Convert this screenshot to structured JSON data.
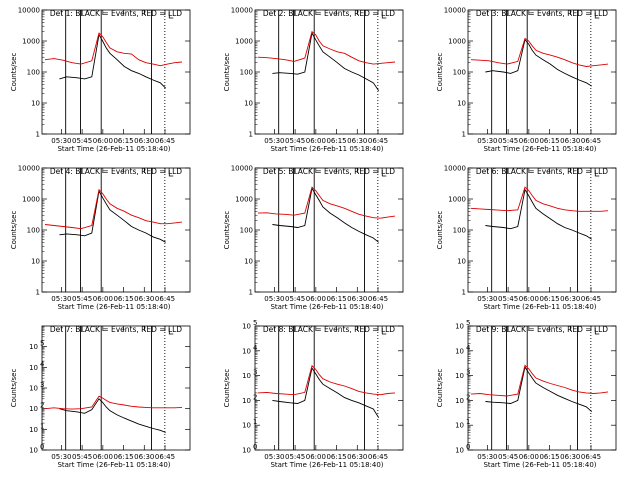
{
  "figure": {
    "colors": {
      "black_series": "#000000",
      "red_series": "#dd0000",
      "axes": "#000000",
      "background": "#ffffff"
    },
    "xticks": [
      "05:30",
      "05:45",
      "06:00",
      "06:15",
      "06:30",
      "06:45"
    ],
    "xlabel": "Start Time (26-Feb-11 05:18:40)",
    "ylabel": "Counts/sec"
  },
  "chart_data": [
    {
      "type": "line",
      "title": "Det 1: BLACK = Events, RED = LLD",
      "ylim": [
        1,
        10000
      ],
      "ytick_style": "plain",
      "yticks": [
        "1",
        "10",
        "100",
        "1000",
        "10000"
      ],
      "xlabel": "Start Time (26-Feb-11 05:18:40)",
      "ylabel": "Counts/sec",
      "xticks": [
        "05:30",
        "05:45",
        "06:00",
        "06:15",
        "06:30",
        "06:45"
      ],
      "series": [
        {
          "color": "black",
          "x_minutes": [
            5,
            8,
            12,
            18,
            22,
            26,
            30,
            32,
            34,
            36,
            40,
            44,
            48,
            52,
            56,
            60,
            64,
            67
          ],
          "values": [
            null,
            60,
            70,
            65,
            60,
            70,
            1600,
            1000,
            600,
            400,
            250,
            150,
            110,
            90,
            70,
            55,
            45,
            30
          ]
        },
        {
          "color": "red",
          "x_minutes": [
            0,
            5,
            10,
            15,
            20,
            26,
            30,
            32,
            34,
            36,
            40,
            44,
            48,
            52,
            56,
            60,
            64,
            68,
            72,
            76
          ],
          "values": [
            250,
            270,
            240,
            200,
            180,
            230,
            1800,
            1400,
            900,
            600,
            450,
            400,
            380,
            250,
            200,
            180,
            160,
            180,
            200,
            210
          ]
        }
      ]
    },
    {
      "type": "line",
      "title": "Det 2: BLACK = Events, RED = LLD",
      "ylim": [
        1,
        10000
      ],
      "ytick_style": "plain",
      "yticks": [
        "1",
        "10",
        "100",
        "1000",
        "10000"
      ],
      "xlabel": "Start Time (26-Feb-11 05:18:40)",
      "ylabel": "Counts/sec",
      "xticks": [
        "05:30",
        "05:45",
        "06:00",
        "06:15",
        "06:30",
        "06:45"
      ],
      "series": [
        {
          "color": "black",
          "x_minutes": [
            5,
            8,
            12,
            18,
            22,
            26,
            30,
            32,
            34,
            36,
            40,
            44,
            48,
            52,
            56,
            60,
            64,
            67
          ],
          "values": [
            null,
            90,
            95,
            90,
            85,
            100,
            1800,
            1100,
            700,
            450,
            300,
            200,
            130,
            100,
            80,
            60,
            45,
            25
          ]
        },
        {
          "color": "red",
          "x_minutes": [
            0,
            5,
            10,
            15,
            20,
            26,
            30,
            32,
            34,
            36,
            40,
            44,
            48,
            52,
            56,
            60,
            64,
            68,
            72,
            76
          ],
          "values": [
            300,
            290,
            270,
            250,
            220,
            280,
            2000,
            1600,
            1000,
            700,
            550,
            450,
            400,
            300,
            230,
            200,
            180,
            190,
            200,
            210
          ]
        }
      ]
    },
    {
      "type": "line",
      "title": "Det 3: BLACK = Events, RED = LLD",
      "ylim": [
        1,
        10000
      ],
      "ytick_style": "plain",
      "yticks": [
        "1",
        "10",
        "100",
        "1000",
        "10000"
      ],
      "xlabel": "Start Time (26-Feb-11 05:18:40)",
      "ylabel": "Counts/sec",
      "xticks": [
        "05:30",
        "05:45",
        "06:00",
        "06:15",
        "06:30",
        "06:45"
      ],
      "series": [
        {
          "color": "black",
          "x_minutes": [
            5,
            8,
            12,
            18,
            22,
            26,
            30,
            32,
            34,
            36,
            40,
            44,
            48,
            52,
            56,
            60,
            64,
            67
          ],
          "values": [
            null,
            100,
            110,
            100,
            90,
            110,
            1100,
            800,
            500,
            350,
            250,
            180,
            120,
            90,
            70,
            55,
            45,
            35
          ]
        },
        {
          "color": "red",
          "x_minutes": [
            0,
            5,
            10,
            15,
            20,
            26,
            30,
            32,
            34,
            36,
            40,
            44,
            48,
            52,
            56,
            60,
            64,
            68,
            72,
            76
          ],
          "values": [
            250,
            240,
            230,
            200,
            180,
            220,
            1200,
            1000,
            700,
            500,
            400,
            350,
            300,
            250,
            200,
            170,
            150,
            160,
            170,
            180
          ]
        }
      ]
    },
    {
      "type": "line",
      "title": "Det 4: BLACK = Events, RED = LLD",
      "ylim": [
        1,
        10000
      ],
      "ytick_style": "plain",
      "yticks": [
        "1",
        "10",
        "100",
        "1000",
        "10000"
      ],
      "xlabel": "Start Time (26-Feb-11 05:18:40)",
      "ylabel": "Counts/sec",
      "xticks": [
        "05:30",
        "05:45",
        "06:00",
        "06:15",
        "06:30",
        "06:45"
      ],
      "series": [
        {
          "color": "black",
          "x_minutes": [
            5,
            8,
            12,
            18,
            22,
            26,
            30,
            32,
            34,
            36,
            40,
            44,
            48,
            52,
            56,
            60,
            64,
            67
          ],
          "values": [
            null,
            70,
            75,
            70,
            65,
            80,
            1800,
            1100,
            700,
            450,
            300,
            200,
            130,
            100,
            80,
            60,
            50,
            40
          ]
        },
        {
          "color": "red",
          "x_minutes": [
            0,
            5,
            10,
            15,
            20,
            26,
            30,
            32,
            34,
            36,
            40,
            44,
            48,
            52,
            56,
            60,
            64,
            68,
            72,
            76
          ],
          "values": [
            150,
            140,
            130,
            120,
            110,
            140,
            2000,
            1500,
            1000,
            700,
            500,
            400,
            300,
            250,
            200,
            180,
            160,
            160,
            170,
            180
          ]
        }
      ]
    },
    {
      "type": "line",
      "title": "Det 5: BLACK = Events, RED = LLD",
      "ylim": [
        1,
        10000
      ],
      "ytick_style": "plain",
      "yticks": [
        "1",
        "10",
        "100",
        "1000",
        "10000"
      ],
      "xlabel": "Start Time (26-Feb-11 05:18:40)",
      "ylabel": "Counts/sec",
      "xticks": [
        "05:30",
        "05:45",
        "06:00",
        "06:15",
        "06:30",
        "06:45"
      ],
      "series": [
        {
          "color": "black",
          "x_minutes": [
            5,
            8,
            12,
            18,
            22,
            26,
            30,
            32,
            34,
            36,
            40,
            44,
            48,
            52,
            56,
            60,
            64,
            67
          ],
          "values": [
            null,
            150,
            140,
            130,
            120,
            140,
            2200,
            1400,
            900,
            550,
            350,
            250,
            170,
            120,
            90,
            70,
            55,
            40
          ]
        },
        {
          "color": "red",
          "x_minutes": [
            0,
            5,
            10,
            15,
            20,
            26,
            30,
            32,
            34,
            36,
            40,
            44,
            48,
            52,
            56,
            60,
            64,
            68,
            72,
            76
          ],
          "values": [
            350,
            360,
            330,
            320,
            300,
            350,
            2400,
            1900,
            1300,
            900,
            700,
            600,
            500,
            400,
            320,
            280,
            250,
            240,
            260,
            280
          ]
        }
      ]
    },
    {
      "type": "line",
      "title": "Det 6: BLACK = Events, RED = LLD",
      "ylim": [
        1,
        10000
      ],
      "ytick_style": "plain",
      "yticks": [
        "1",
        "10",
        "100",
        "1000",
        "10000"
      ],
      "xlabel": "Start Time (26-Feb-11 05:18:40)",
      "ylabel": "Counts/sec",
      "xticks": [
        "05:30",
        "05:45",
        "06:00",
        "06:15",
        "06:30",
        "06:45"
      ],
      "series": [
        {
          "color": "black",
          "x_minutes": [
            5,
            8,
            12,
            18,
            22,
            26,
            30,
            32,
            34,
            36,
            40,
            44,
            48,
            52,
            56,
            60,
            64,
            67
          ],
          "values": [
            null,
            140,
            130,
            120,
            110,
            130,
            2000,
            1300,
            800,
            500,
            330,
            230,
            160,
            120,
            100,
            80,
            65,
            50
          ]
        },
        {
          "color": "red",
          "x_minutes": [
            0,
            5,
            10,
            15,
            20,
            26,
            30,
            32,
            34,
            36,
            40,
            44,
            48,
            52,
            56,
            60,
            64,
            68,
            72,
            76
          ],
          "values": [
            500,
            480,
            460,
            440,
            420,
            450,
            2400,
            1900,
            1300,
            900,
            700,
            600,
            500,
            450,
            420,
            400,
            400,
            400,
            400,
            420
          ]
        }
      ]
    },
    {
      "type": "line",
      "title": "Det 7: BLACK = Events, RED = LLD",
      "ylim": [
        1,
        1000000
      ],
      "ytick_style": "power",
      "ytick_exponents": [
        0,
        1,
        2,
        3,
        4,
        5
      ],
      "xlabel": "Start Time (26-Feb-11 05:18:40)",
      "ylabel": "Counts/sec",
      "xticks": [
        "05:30",
        "05:45",
        "06:00",
        "06:15",
        "06:30",
        "06:45"
      ],
      "series": [
        {
          "color": "black",
          "x_minutes": [
            5,
            8,
            12,
            18,
            22,
            26,
            30,
            32,
            34,
            36,
            40,
            44,
            48,
            52,
            56,
            60,
            64,
            67
          ],
          "values": [
            null,
            100,
            80,
            70,
            60,
            90,
            300,
            200,
            120,
            80,
            50,
            35,
            25,
            18,
            14,
            11,
            9,
            7
          ]
        },
        {
          "color": "red",
          "x_minutes": [
            0,
            5,
            10,
            15,
            20,
            26,
            30,
            32,
            34,
            36,
            40,
            44,
            48,
            52,
            56,
            60,
            64,
            68,
            72,
            76
          ],
          "values": [
            100,
            110,
            100,
            95,
            100,
            120,
            400,
            330,
            250,
            200,
            170,
            150,
            130,
            120,
            115,
            110,
            110,
            110,
            110,
            115
          ]
        }
      ]
    },
    {
      "type": "line",
      "title": "Det 8: BLACK = Events, RED = LLD",
      "ylim": [
        1,
        100000
      ],
      "ytick_style": "power",
      "ytick_exponents": [
        0,
        1,
        2,
        3,
        4,
        5
      ],
      "xlabel": "Start Time (26-Feb-11 05:18:40)",
      "ylabel": "Counts/sec",
      "xticks": [
        "05:30",
        "05:45",
        "06:00",
        "06:15",
        "06:30",
        "06:45"
      ],
      "series": [
        {
          "color": "black",
          "x_minutes": [
            5,
            8,
            12,
            18,
            22,
            26,
            30,
            32,
            34,
            36,
            40,
            44,
            48,
            52,
            56,
            60,
            64,
            67
          ],
          "values": [
            null,
            100,
            90,
            80,
            75,
            100,
            2000,
            1200,
            700,
            450,
            300,
            200,
            130,
            100,
            80,
            60,
            45,
            20
          ]
        },
        {
          "color": "red",
          "x_minutes": [
            0,
            5,
            10,
            15,
            20,
            26,
            30,
            32,
            34,
            36,
            40,
            44,
            48,
            52,
            56,
            60,
            64,
            68,
            72,
            76
          ],
          "values": [
            200,
            210,
            190,
            180,
            170,
            210,
            2500,
            1800,
            1100,
            750,
            550,
            450,
            380,
            300,
            230,
            200,
            180,
            170,
            190,
            200
          ]
        }
      ]
    },
    {
      "type": "line",
      "title": "Det 9: BLACK = Events, RED = LLD",
      "ylim": [
        1,
        100000
      ],
      "ytick_style": "power",
      "ytick_exponents": [
        0,
        1,
        2,
        3,
        4,
        5
      ],
      "xlabel": "Start Time (26-Feb-11 05:18:40)",
      "ylabel": "Counts/sec",
      "xticks": [
        "05:30",
        "05:45",
        "06:00",
        "06:15",
        "06:30",
        "06:45"
      ],
      "series": [
        {
          "color": "black",
          "x_minutes": [
            5,
            8,
            12,
            18,
            22,
            26,
            30,
            32,
            34,
            36,
            40,
            44,
            48,
            52,
            56,
            60,
            64,
            67
          ],
          "values": [
            null,
            90,
            85,
            80,
            75,
            100,
            2200,
            1300,
            800,
            500,
            330,
            230,
            160,
            120,
            90,
            70,
            55,
            35
          ]
        },
        {
          "color": "red",
          "x_minutes": [
            0,
            5,
            10,
            15,
            20,
            26,
            30,
            32,
            34,
            36,
            40,
            44,
            48,
            52,
            56,
            60,
            64,
            68,
            72,
            76
          ],
          "values": [
            180,
            190,
            170,
            160,
            150,
            180,
            2600,
            1900,
            1200,
            800,
            600,
            480,
            400,
            330,
            260,
            220,
            200,
            190,
            200,
            220
          ]
        }
      ]
    }
  ]
}
